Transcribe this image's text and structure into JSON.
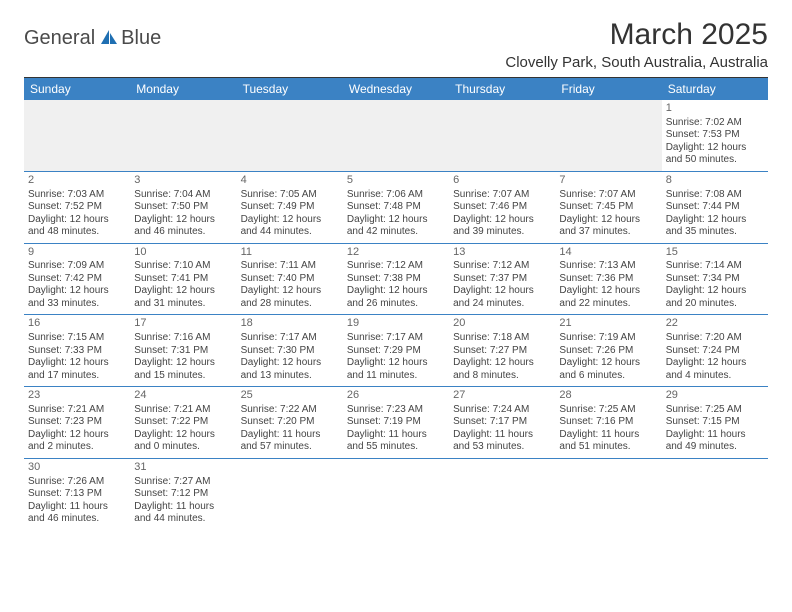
{
  "logo": {
    "text1": "General",
    "text2": "Blue",
    "color_text": "#4a4a4a",
    "color_sail": "#1f6fb2"
  },
  "header": {
    "month_title": "March 2025",
    "location": "Clovelly Park, South Australia, Australia"
  },
  "colors": {
    "header_bg": "#3b82c4",
    "header_text": "#ffffff",
    "row_border": "#3b82c4",
    "blank_bg": "#f0f0f0",
    "top_rule": "#333333"
  },
  "daynames": [
    "Sunday",
    "Monday",
    "Tuesday",
    "Wednesday",
    "Thursday",
    "Friday",
    "Saturday"
  ],
  "weeks": [
    [
      null,
      null,
      null,
      null,
      null,
      null,
      {
        "n": "1",
        "sunrise": "Sunrise: 7:02 AM",
        "sunset": "Sunset: 7:53 PM",
        "daylight": "Daylight: 12 hours and 50 minutes."
      }
    ],
    [
      {
        "n": "2",
        "sunrise": "Sunrise: 7:03 AM",
        "sunset": "Sunset: 7:52 PM",
        "daylight": "Daylight: 12 hours and 48 minutes."
      },
      {
        "n": "3",
        "sunrise": "Sunrise: 7:04 AM",
        "sunset": "Sunset: 7:50 PM",
        "daylight": "Daylight: 12 hours and 46 minutes."
      },
      {
        "n": "4",
        "sunrise": "Sunrise: 7:05 AM",
        "sunset": "Sunset: 7:49 PM",
        "daylight": "Daylight: 12 hours and 44 minutes."
      },
      {
        "n": "5",
        "sunrise": "Sunrise: 7:06 AM",
        "sunset": "Sunset: 7:48 PM",
        "daylight": "Daylight: 12 hours and 42 minutes."
      },
      {
        "n": "6",
        "sunrise": "Sunrise: 7:07 AM",
        "sunset": "Sunset: 7:46 PM",
        "daylight": "Daylight: 12 hours and 39 minutes."
      },
      {
        "n": "7",
        "sunrise": "Sunrise: 7:07 AM",
        "sunset": "Sunset: 7:45 PM",
        "daylight": "Daylight: 12 hours and 37 minutes."
      },
      {
        "n": "8",
        "sunrise": "Sunrise: 7:08 AM",
        "sunset": "Sunset: 7:44 PM",
        "daylight": "Daylight: 12 hours and 35 minutes."
      }
    ],
    [
      {
        "n": "9",
        "sunrise": "Sunrise: 7:09 AM",
        "sunset": "Sunset: 7:42 PM",
        "daylight": "Daylight: 12 hours and 33 minutes."
      },
      {
        "n": "10",
        "sunrise": "Sunrise: 7:10 AM",
        "sunset": "Sunset: 7:41 PM",
        "daylight": "Daylight: 12 hours and 31 minutes."
      },
      {
        "n": "11",
        "sunrise": "Sunrise: 7:11 AM",
        "sunset": "Sunset: 7:40 PM",
        "daylight": "Daylight: 12 hours and 28 minutes."
      },
      {
        "n": "12",
        "sunrise": "Sunrise: 7:12 AM",
        "sunset": "Sunset: 7:38 PM",
        "daylight": "Daylight: 12 hours and 26 minutes."
      },
      {
        "n": "13",
        "sunrise": "Sunrise: 7:12 AM",
        "sunset": "Sunset: 7:37 PM",
        "daylight": "Daylight: 12 hours and 24 minutes."
      },
      {
        "n": "14",
        "sunrise": "Sunrise: 7:13 AM",
        "sunset": "Sunset: 7:36 PM",
        "daylight": "Daylight: 12 hours and 22 minutes."
      },
      {
        "n": "15",
        "sunrise": "Sunrise: 7:14 AM",
        "sunset": "Sunset: 7:34 PM",
        "daylight": "Daylight: 12 hours and 20 minutes."
      }
    ],
    [
      {
        "n": "16",
        "sunrise": "Sunrise: 7:15 AM",
        "sunset": "Sunset: 7:33 PM",
        "daylight": "Daylight: 12 hours and 17 minutes."
      },
      {
        "n": "17",
        "sunrise": "Sunrise: 7:16 AM",
        "sunset": "Sunset: 7:31 PM",
        "daylight": "Daylight: 12 hours and 15 minutes."
      },
      {
        "n": "18",
        "sunrise": "Sunrise: 7:17 AM",
        "sunset": "Sunset: 7:30 PM",
        "daylight": "Daylight: 12 hours and 13 minutes."
      },
      {
        "n": "19",
        "sunrise": "Sunrise: 7:17 AM",
        "sunset": "Sunset: 7:29 PM",
        "daylight": "Daylight: 12 hours and 11 minutes."
      },
      {
        "n": "20",
        "sunrise": "Sunrise: 7:18 AM",
        "sunset": "Sunset: 7:27 PM",
        "daylight": "Daylight: 12 hours and 8 minutes."
      },
      {
        "n": "21",
        "sunrise": "Sunrise: 7:19 AM",
        "sunset": "Sunset: 7:26 PM",
        "daylight": "Daylight: 12 hours and 6 minutes."
      },
      {
        "n": "22",
        "sunrise": "Sunrise: 7:20 AM",
        "sunset": "Sunset: 7:24 PM",
        "daylight": "Daylight: 12 hours and 4 minutes."
      }
    ],
    [
      {
        "n": "23",
        "sunrise": "Sunrise: 7:21 AM",
        "sunset": "Sunset: 7:23 PM",
        "daylight": "Daylight: 12 hours and 2 minutes."
      },
      {
        "n": "24",
        "sunrise": "Sunrise: 7:21 AM",
        "sunset": "Sunset: 7:22 PM",
        "daylight": "Daylight: 12 hours and 0 minutes."
      },
      {
        "n": "25",
        "sunrise": "Sunrise: 7:22 AM",
        "sunset": "Sunset: 7:20 PM",
        "daylight": "Daylight: 11 hours and 57 minutes."
      },
      {
        "n": "26",
        "sunrise": "Sunrise: 7:23 AM",
        "sunset": "Sunset: 7:19 PM",
        "daylight": "Daylight: 11 hours and 55 minutes."
      },
      {
        "n": "27",
        "sunrise": "Sunrise: 7:24 AM",
        "sunset": "Sunset: 7:17 PM",
        "daylight": "Daylight: 11 hours and 53 minutes."
      },
      {
        "n": "28",
        "sunrise": "Sunrise: 7:25 AM",
        "sunset": "Sunset: 7:16 PM",
        "daylight": "Daylight: 11 hours and 51 minutes."
      },
      {
        "n": "29",
        "sunrise": "Sunrise: 7:25 AM",
        "sunset": "Sunset: 7:15 PM",
        "daylight": "Daylight: 11 hours and 49 minutes."
      }
    ],
    [
      {
        "n": "30",
        "sunrise": "Sunrise: 7:26 AM",
        "sunset": "Sunset: 7:13 PM",
        "daylight": "Daylight: 11 hours and 46 minutes."
      },
      {
        "n": "31",
        "sunrise": "Sunrise: 7:27 AM",
        "sunset": "Sunset: 7:12 PM",
        "daylight": "Daylight: 11 hours and 44 minutes."
      },
      null,
      null,
      null,
      null,
      null
    ]
  ]
}
